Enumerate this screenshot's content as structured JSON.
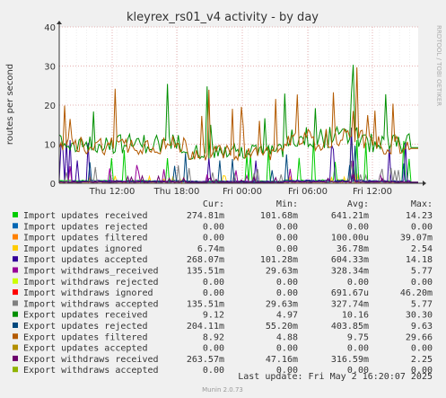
{
  "chart_data": {
    "type": "line",
    "title": "kleyrex_rs01_v4 activity - by day",
    "ylabel": "routes per second",
    "ylim": [
      0,
      40
    ],
    "yticks": [
      0,
      10,
      20,
      30,
      40
    ],
    "xticks": [
      "Thu 12:00",
      "Thu 18:00",
      "Fri 00:00",
      "Fri 06:00",
      "Fri 12:00"
    ],
    "grid": true,
    "side_label": "RRDTOOL / TOBI OETIKER",
    "legend_headers": {
      "cur": "Cur:",
      "min": "Min:",
      "avg": "Avg:",
      "max": "Max:"
    },
    "series": [
      {
        "name": "Import updates received",
        "color": "#00cc00",
        "cur": "274.81m",
        "min": "101.68m",
        "avg": "641.21m",
        "max": "14.23"
      },
      {
        "name": "Import updates rejected",
        "color": "#0066b3",
        "cur": "0.00",
        "min": "0.00",
        "avg": "0.00",
        "max": "0.00"
      },
      {
        "name": "Import updates filtered",
        "color": "#ff8000",
        "cur": "0.00",
        "min": "0.00",
        "avg": "100.00u",
        "max": "39.07m"
      },
      {
        "name": "Import updates ignored",
        "color": "#ffcc00",
        "cur": "6.74m",
        "min": "0.00",
        "avg": "36.78m",
        "max": "2.54"
      },
      {
        "name": "Import updates accepted",
        "color": "#330099",
        "cur": "268.07m",
        "min": "101.28m",
        "avg": "604.33m",
        "max": "14.18"
      },
      {
        "name": "Import withdraws_received",
        "color": "#990099",
        "cur": "135.51m",
        "min": "29.63m",
        "avg": "328.34m",
        "max": "5.77"
      },
      {
        "name": "Import withdraws rejected",
        "color": "#ccff00",
        "cur": "0.00",
        "min": "0.00",
        "avg": "0.00",
        "max": "0.00"
      },
      {
        "name": "Import withdraws ignored",
        "color": "#ff0000",
        "cur": "0.00",
        "min": "0.00",
        "avg": "691.67u",
        "max": "46.20m"
      },
      {
        "name": "Import withdraws accepted",
        "color": "#808080",
        "cur": "135.51m",
        "min": "29.63m",
        "avg": "327.74m",
        "max": "5.77"
      },
      {
        "name": "Export updates received",
        "color": "#008f00",
        "cur": "9.12",
        "min": "4.97",
        "avg": "10.16",
        "max": "30.30"
      },
      {
        "name": "Export updates rejected",
        "color": "#00487d",
        "cur": "204.11m",
        "min": "55.20m",
        "avg": "403.85m",
        "max": "9.63"
      },
      {
        "name": "Export updates filtered",
        "color": "#b35a00",
        "cur": "8.92",
        "min": "4.88",
        "avg": "9.75",
        "max": "29.66"
      },
      {
        "name": "Export updates accepted",
        "color": "#b38f00",
        "cur": "0.00",
        "min": "0.00",
        "avg": "0.00",
        "max": "0.00"
      },
      {
        "name": "Export withdraws received",
        "color": "#6b006b",
        "cur": "263.57m",
        "min": "47.16m",
        "avg": "316.59m",
        "max": "2.25"
      },
      {
        "name": "Export withdraws accepted",
        "color": "#8fb300",
        "cur": "0.00",
        "min": "0.00",
        "avg": "0.00",
        "max": "0.00"
      }
    ]
  },
  "footer": {
    "last_update": "Last update: Fri May  2 16:20:07 2025",
    "munin": "Munin 2.0.73"
  }
}
